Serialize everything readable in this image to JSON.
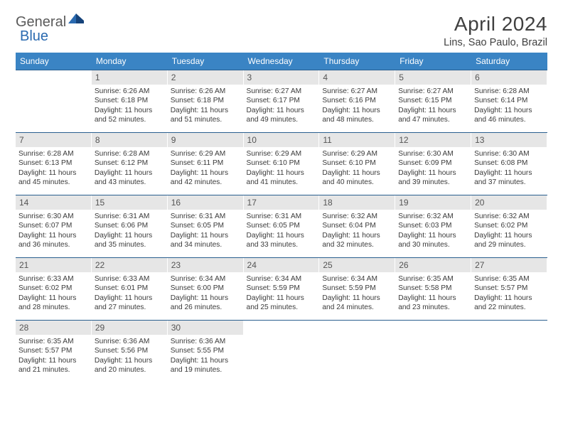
{
  "logo": {
    "general": "General",
    "blue": "Blue"
  },
  "title": "April 2024",
  "location": "Lins, Sao Paulo, Brazil",
  "dow": [
    "Sunday",
    "Monday",
    "Tuesday",
    "Wednesday",
    "Thursday",
    "Friday",
    "Saturday"
  ],
  "colors": {
    "header_bg": "#3a84c4",
    "header_text": "#ffffff",
    "row_border": "#2a5f8f",
    "daynum_bg": "#e6e6e6",
    "daynum_text": "#555555",
    "body_text": "#3a3a3a",
    "logo_gray": "#5a5a5a",
    "logo_blue": "#2a6ab0"
  },
  "weeks": [
    [
      null,
      {
        "n": "1",
        "sr": "6:26 AM",
        "ss": "6:18 PM",
        "dl": "11 hours and 52 minutes."
      },
      {
        "n": "2",
        "sr": "6:26 AM",
        "ss": "6:18 PM",
        "dl": "11 hours and 51 minutes."
      },
      {
        "n": "3",
        "sr": "6:27 AM",
        "ss": "6:17 PM",
        "dl": "11 hours and 49 minutes."
      },
      {
        "n": "4",
        "sr": "6:27 AM",
        "ss": "6:16 PM",
        "dl": "11 hours and 48 minutes."
      },
      {
        "n": "5",
        "sr": "6:27 AM",
        "ss": "6:15 PM",
        "dl": "11 hours and 47 minutes."
      },
      {
        "n": "6",
        "sr": "6:28 AM",
        "ss": "6:14 PM",
        "dl": "11 hours and 46 minutes."
      }
    ],
    [
      {
        "n": "7",
        "sr": "6:28 AM",
        "ss": "6:13 PM",
        "dl": "11 hours and 45 minutes."
      },
      {
        "n": "8",
        "sr": "6:28 AM",
        "ss": "6:12 PM",
        "dl": "11 hours and 43 minutes."
      },
      {
        "n": "9",
        "sr": "6:29 AM",
        "ss": "6:11 PM",
        "dl": "11 hours and 42 minutes."
      },
      {
        "n": "10",
        "sr": "6:29 AM",
        "ss": "6:10 PM",
        "dl": "11 hours and 41 minutes."
      },
      {
        "n": "11",
        "sr": "6:29 AM",
        "ss": "6:10 PM",
        "dl": "11 hours and 40 minutes."
      },
      {
        "n": "12",
        "sr": "6:30 AM",
        "ss": "6:09 PM",
        "dl": "11 hours and 39 minutes."
      },
      {
        "n": "13",
        "sr": "6:30 AM",
        "ss": "6:08 PM",
        "dl": "11 hours and 37 minutes."
      }
    ],
    [
      {
        "n": "14",
        "sr": "6:30 AM",
        "ss": "6:07 PM",
        "dl": "11 hours and 36 minutes."
      },
      {
        "n": "15",
        "sr": "6:31 AM",
        "ss": "6:06 PM",
        "dl": "11 hours and 35 minutes."
      },
      {
        "n": "16",
        "sr": "6:31 AM",
        "ss": "6:05 PM",
        "dl": "11 hours and 34 minutes."
      },
      {
        "n": "17",
        "sr": "6:31 AM",
        "ss": "6:05 PM",
        "dl": "11 hours and 33 minutes."
      },
      {
        "n": "18",
        "sr": "6:32 AM",
        "ss": "6:04 PM",
        "dl": "11 hours and 32 minutes."
      },
      {
        "n": "19",
        "sr": "6:32 AM",
        "ss": "6:03 PM",
        "dl": "11 hours and 30 minutes."
      },
      {
        "n": "20",
        "sr": "6:32 AM",
        "ss": "6:02 PM",
        "dl": "11 hours and 29 minutes."
      }
    ],
    [
      {
        "n": "21",
        "sr": "6:33 AM",
        "ss": "6:02 PM",
        "dl": "11 hours and 28 minutes."
      },
      {
        "n": "22",
        "sr": "6:33 AM",
        "ss": "6:01 PM",
        "dl": "11 hours and 27 minutes."
      },
      {
        "n": "23",
        "sr": "6:34 AM",
        "ss": "6:00 PM",
        "dl": "11 hours and 26 minutes."
      },
      {
        "n": "24",
        "sr": "6:34 AM",
        "ss": "5:59 PM",
        "dl": "11 hours and 25 minutes."
      },
      {
        "n": "25",
        "sr": "6:34 AM",
        "ss": "5:59 PM",
        "dl": "11 hours and 24 minutes."
      },
      {
        "n": "26",
        "sr": "6:35 AM",
        "ss": "5:58 PM",
        "dl": "11 hours and 23 minutes."
      },
      {
        "n": "27",
        "sr": "6:35 AM",
        "ss": "5:57 PM",
        "dl": "11 hours and 22 minutes."
      }
    ],
    [
      {
        "n": "28",
        "sr": "6:35 AM",
        "ss": "5:57 PM",
        "dl": "11 hours and 21 minutes."
      },
      {
        "n": "29",
        "sr": "6:36 AM",
        "ss": "5:56 PM",
        "dl": "11 hours and 20 minutes."
      },
      {
        "n": "30",
        "sr": "6:36 AM",
        "ss": "5:55 PM",
        "dl": "11 hours and 19 minutes."
      },
      null,
      null,
      null,
      null
    ]
  ],
  "labels": {
    "sunrise": "Sunrise:",
    "sunset": "Sunset:",
    "daylight": "Daylight:"
  }
}
